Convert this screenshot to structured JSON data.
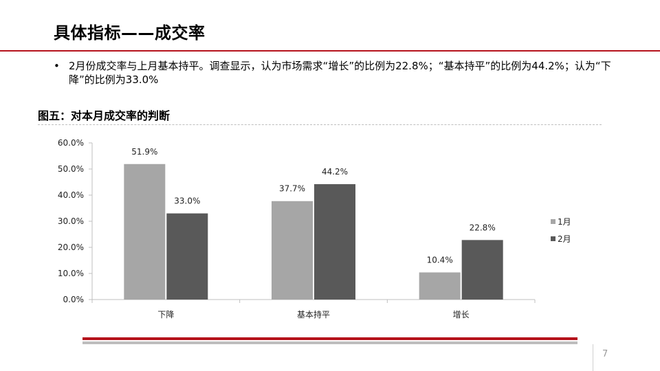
{
  "slide": {
    "title": "具体指标——成交率",
    "bullet_marker": "•",
    "bullet_text": "2月份成交率与上月基本持平。调查显示，认为市场需求“增长”的比例为22.8%；“基本持平”的比例为44.2%；认为“下降”的比例为33.0%",
    "figure_title": "图五：对本月成交率的判断",
    "page_number": "7"
  },
  "colors": {
    "accent_red": "#b5121b",
    "series_1": "#a6a6a6",
    "series_2": "#595959"
  },
  "chart_data": {
    "type": "bar",
    "title": "",
    "xlabel": "",
    "ylabel": "",
    "categories": [
      "下降",
      "基本持平",
      "增长"
    ],
    "series": [
      {
        "name": "1月",
        "values": [
          51.9,
          37.7,
          10.4
        ],
        "labels": [
          "51.9%",
          "37.7%",
          "10.4%"
        ]
      },
      {
        "name": "2月",
        "values": [
          33.0,
          44.2,
          22.8
        ],
        "labels": [
          "33.0%",
          "44.2%",
          "22.8%"
        ]
      }
    ],
    "ylim": [
      0,
      60
    ],
    "yticks": [
      "0.0%",
      "10.0%",
      "20.0%",
      "30.0%",
      "40.0%",
      "50.0%",
      "60.0%"
    ],
    "grid": false,
    "legend": "right"
  }
}
